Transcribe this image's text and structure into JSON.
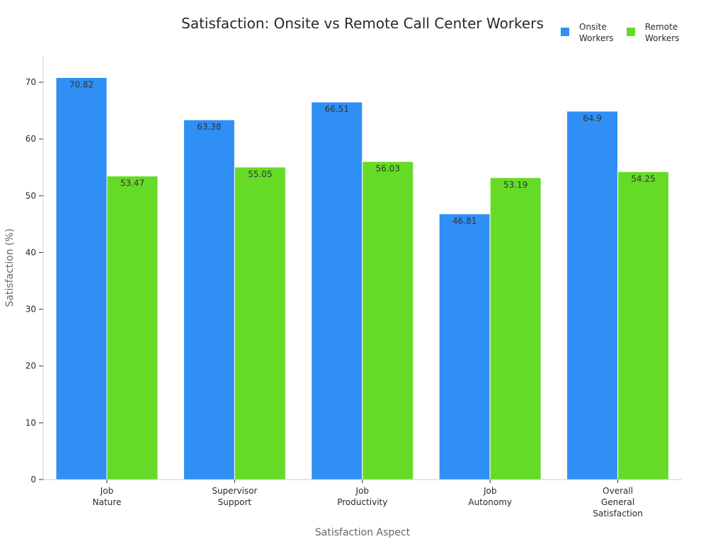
{
  "chart_data": {
    "type": "bar",
    "title": "Satisfaction: Onsite vs Remote Call Center Workers",
    "xlabel": "Satisfaction Aspect",
    "ylabel": "Satisfaction (%)",
    "categories": [
      [
        "Job",
        "Nature"
      ],
      [
        "Supervisor",
        "Support"
      ],
      [
        "Job",
        "Productivity"
      ],
      [
        "Job",
        "Autonomy"
      ],
      [
        "Overall",
        "General",
        "Satisfaction"
      ]
    ],
    "series": [
      {
        "name": [
          "Onsite",
          "Workers"
        ],
        "color": "#2F8FF5",
        "values": [
          70.82,
          63.38,
          66.51,
          46.81,
          64.9
        ]
      },
      {
        "name": [
          "Remote",
          "Workers"
        ],
        "color": "#66DB27",
        "values": [
          53.47,
          55.05,
          56.03,
          53.19,
          54.25
        ]
      }
    ],
    "ylim": [
      0,
      74.5
    ],
    "yticks": [
      0,
      10,
      20,
      30,
      40,
      50,
      60,
      70
    ],
    "grid": false,
    "legend_position": "top-right"
  }
}
